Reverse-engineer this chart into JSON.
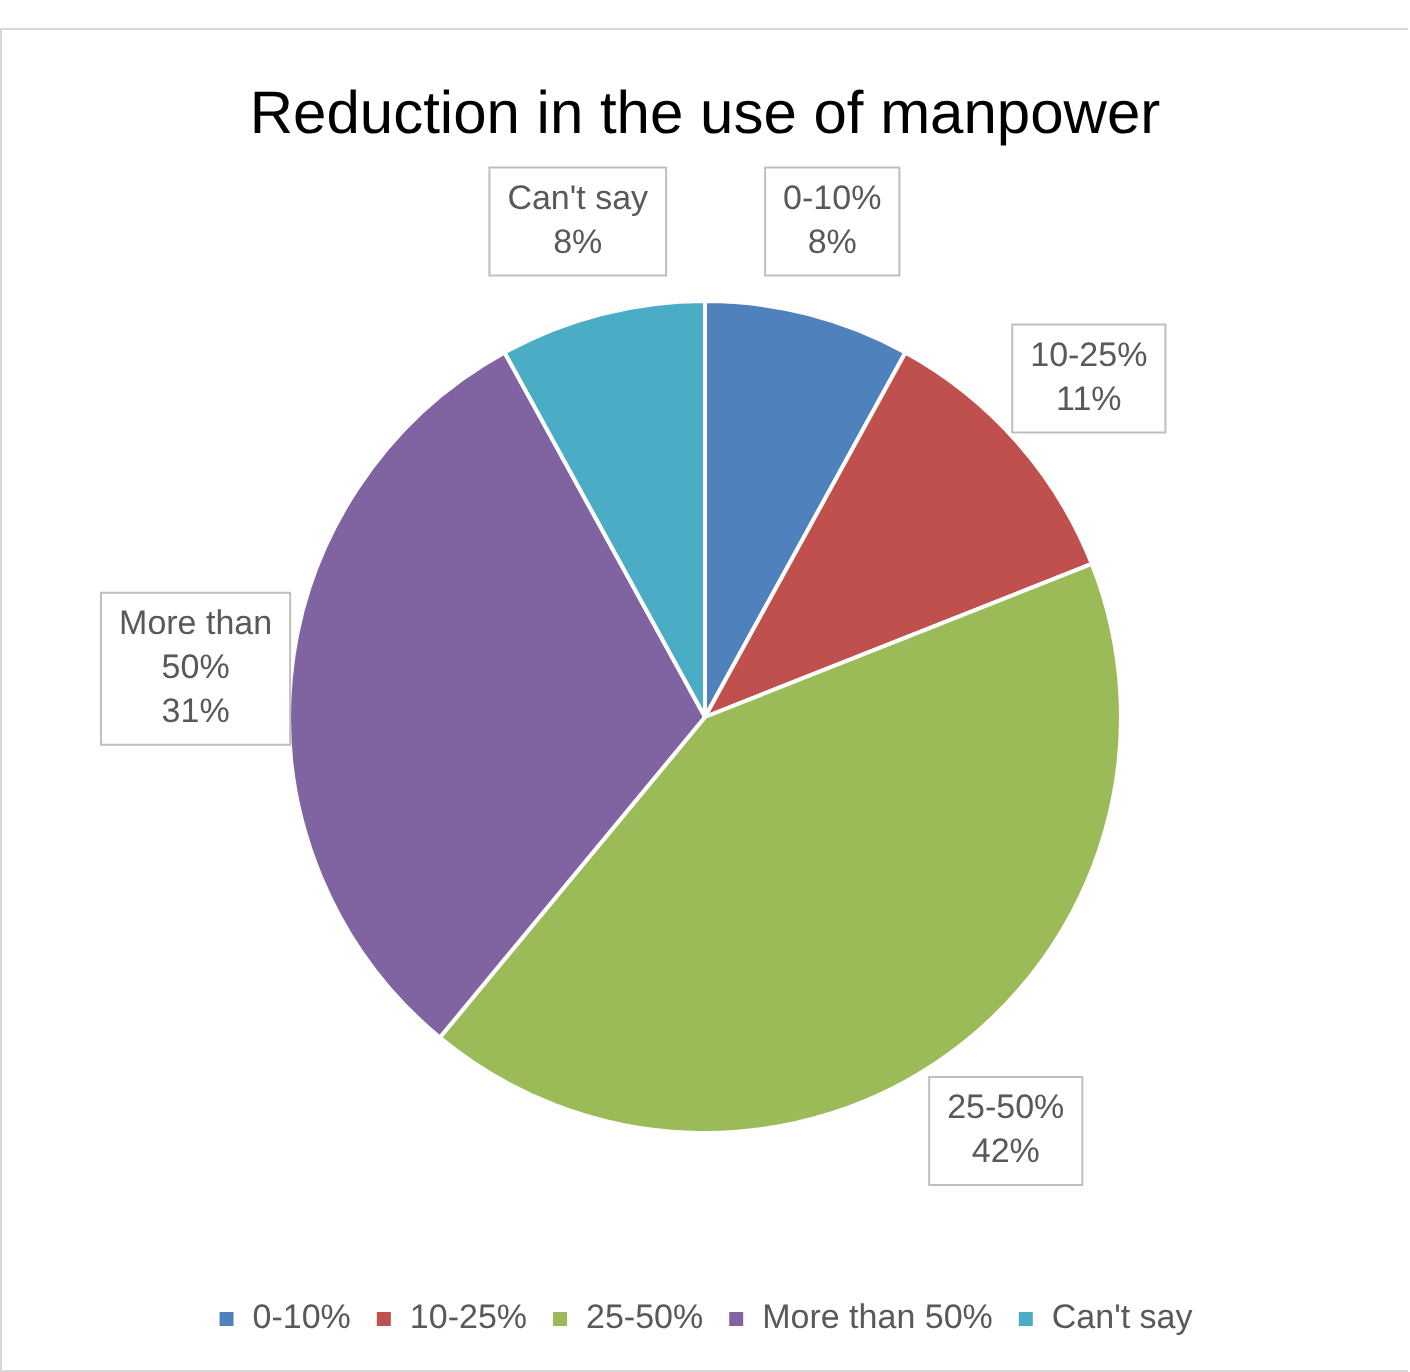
{
  "chart_data": {
    "type": "pie",
    "title": "Reduction in the use of manpower",
    "categories": [
      "0-10%",
      "10-25%",
      "25-50%",
      "More than 50%",
      "Can't say"
    ],
    "values": [
      8,
      11,
      42,
      31,
      8
    ],
    "value_labels": [
      "8%",
      "11%",
      "42%",
      "31%",
      "8%"
    ],
    "colors": [
      "#4f81bd",
      "#c0504d",
      "#9bbb59",
      "#8064a2",
      "#4bacc6"
    ],
    "legend": "bottom"
  }
}
